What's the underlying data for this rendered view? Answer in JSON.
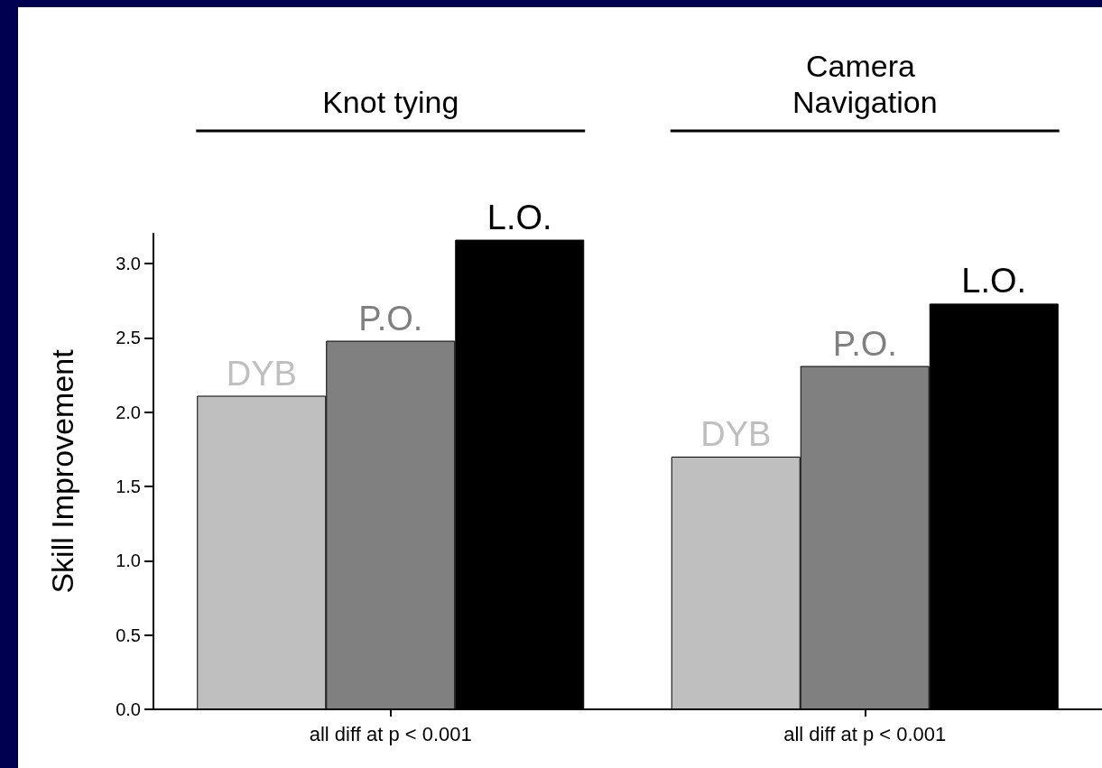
{
  "chart_data": {
    "type": "bar",
    "ylabel": "Skill Improvement",
    "categories": [
      "Knot tying",
      "Camera Navigation"
    ],
    "series": [
      {
        "name": "DYB",
        "color": "#bfbfbf",
        "values": [
          2.11,
          1.7
        ]
      },
      {
        "name": "P.O.",
        "color": "#808080",
        "values": [
          2.48,
          2.31
        ]
      },
      {
        "name": "L.O.",
        "color": "#000000",
        "values": [
          3.16,
          2.73
        ]
      }
    ],
    "ylim": [
      0,
      3.2
    ],
    "yticks": [
      {
        "value": 0,
        "label": "0.0"
      },
      {
        "value": 0.5,
        "label": "0.5"
      },
      {
        "value": 1,
        "label": "1.0"
      },
      {
        "value": 1.5,
        "label": "1.5"
      },
      {
        "value": 2,
        "label": "2.0"
      },
      {
        "value": 2.5,
        "label": "2.5"
      },
      {
        "value": 3,
        "label": "3.0"
      }
    ],
    "annotations": [
      "all diff at p < 0.001",
      "all diff at p < 0.001"
    ],
    "grid": false,
    "legend": false
  }
}
